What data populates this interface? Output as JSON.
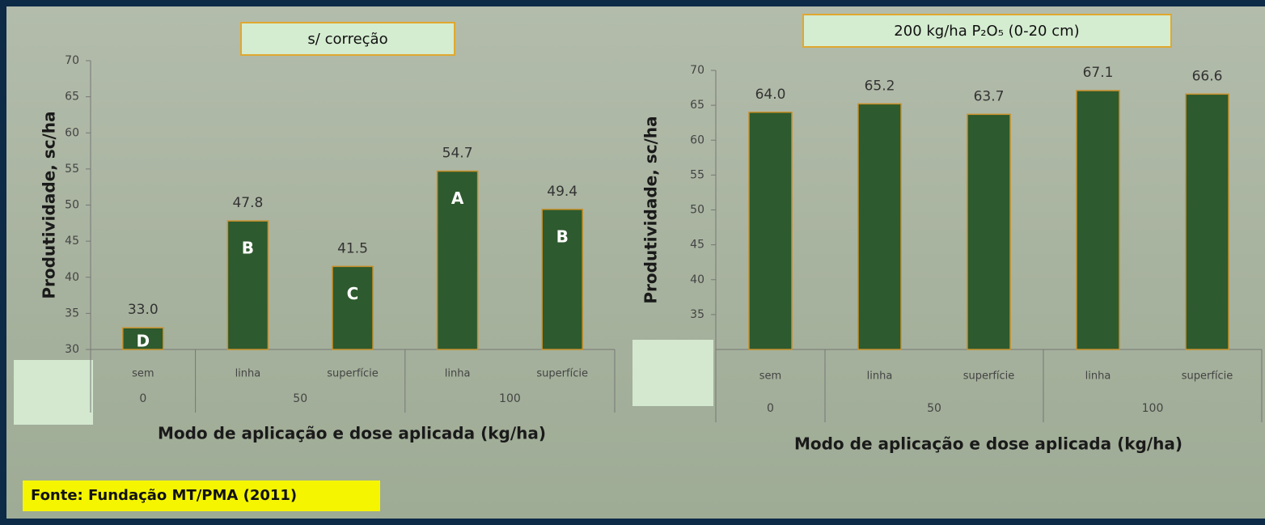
{
  "chart_data": [
    {
      "type": "bar",
      "title": "s/ correção",
      "categories": [
        "sem",
        "linha",
        "superfície",
        "linha",
        "superfície"
      ],
      "groups": [
        {
          "label": "0",
          "count": 1
        },
        {
          "label": "50",
          "count": 2
        },
        {
          "label": "100",
          "count": 2
        }
      ],
      "values": [
        33.0,
        47.8,
        41.5,
        54.7,
        49.4
      ],
      "value_labels": [
        "33.0",
        "47.8",
        "41.5",
        "54.7",
        "49.4"
      ],
      "annotations": [
        "D",
        "B",
        "C",
        "A",
        "B"
      ],
      "color": "#2d5a2e",
      "ylim": [
        30,
        70
      ],
      "yticks": [
        30,
        35,
        40,
        45,
        50,
        55,
        60,
        65,
        70
      ],
      "ylabel": "Produtividade, sc/ha",
      "xlabel": "Modo de aplicação e dose aplicada (kg/ha)"
    },
    {
      "type": "bar",
      "title": "200 kg/ha P₂O₅ (0-20 cm)",
      "categories": [
        "sem",
        "linha",
        "superfície",
        "linha",
        "superfície"
      ],
      "groups": [
        {
          "label": "0",
          "count": 1
        },
        {
          "label": "50",
          "count": 2
        },
        {
          "label": "100",
          "count": 2
        }
      ],
      "values": [
        64.0,
        65.2,
        63.7,
        67.1,
        66.6
      ],
      "value_labels": [
        "64.0",
        "65.2",
        "63.7",
        "67.1",
        "66.6"
      ],
      "color": "#2d5a2e",
      "ylim": [
        30,
        70
      ],
      "yticks": [
        35,
        40,
        45,
        50,
        55,
        60,
        65,
        70
      ],
      "ylabel": "Produtividade, sc/ha",
      "xlabel": "Modo de aplicação e dose aplicada (kg/ha)"
    }
  ],
  "source": "Fonte: Fundação MT/PMA (2011)"
}
